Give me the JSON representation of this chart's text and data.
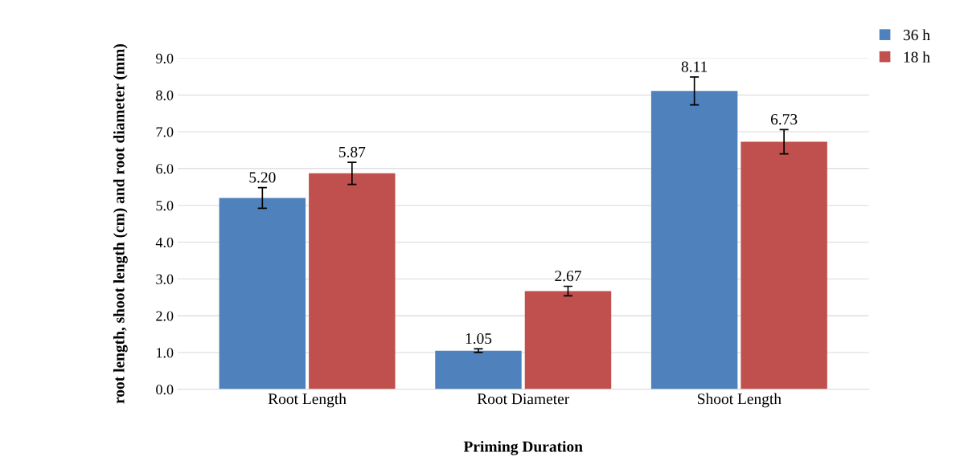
{
  "chart_data": {
    "type": "bar",
    "xlabel": "Priming Duration",
    "ylabel": "root length, shoot length (cm) and root diameter (mm)",
    "categories": [
      "Root Length",
      "Root Diameter",
      "Shoot Length"
    ],
    "series": [
      {
        "name": "36 h",
        "color": "#4f81bd",
        "values": [
          5.2,
          1.05,
          8.11
        ],
        "value_labels": [
          "5.20",
          "1.05",
          "8.11"
        ],
        "errors": [
          0.28,
          0.05,
          0.38
        ]
      },
      {
        "name": "18 h",
        "color": "#c0504d",
        "values": [
          5.87,
          2.67,
          6.73
        ],
        "value_labels": [
          "5.87",
          "2.67",
          "6.73"
        ],
        "errors": [
          0.3,
          0.13,
          0.33
        ]
      }
    ],
    "ylim": [
      0,
      9
    ],
    "yticks": [
      {
        "value": 0,
        "label": "0.0"
      },
      {
        "value": 1,
        "label": "1.0"
      },
      {
        "value": 2,
        "label": "2.0"
      },
      {
        "value": 3,
        "label": "3.0"
      },
      {
        "value": 4,
        "label": "4.0"
      },
      {
        "value": 5,
        "label": "5.0"
      },
      {
        "value": 6,
        "label": "6.0"
      },
      {
        "value": 7,
        "label": "7.0"
      },
      {
        "value": 8,
        "label": "8.0"
      },
      {
        "value": 9,
        "label": "9.0"
      }
    ],
    "grid": "y",
    "legend": "top right"
  }
}
